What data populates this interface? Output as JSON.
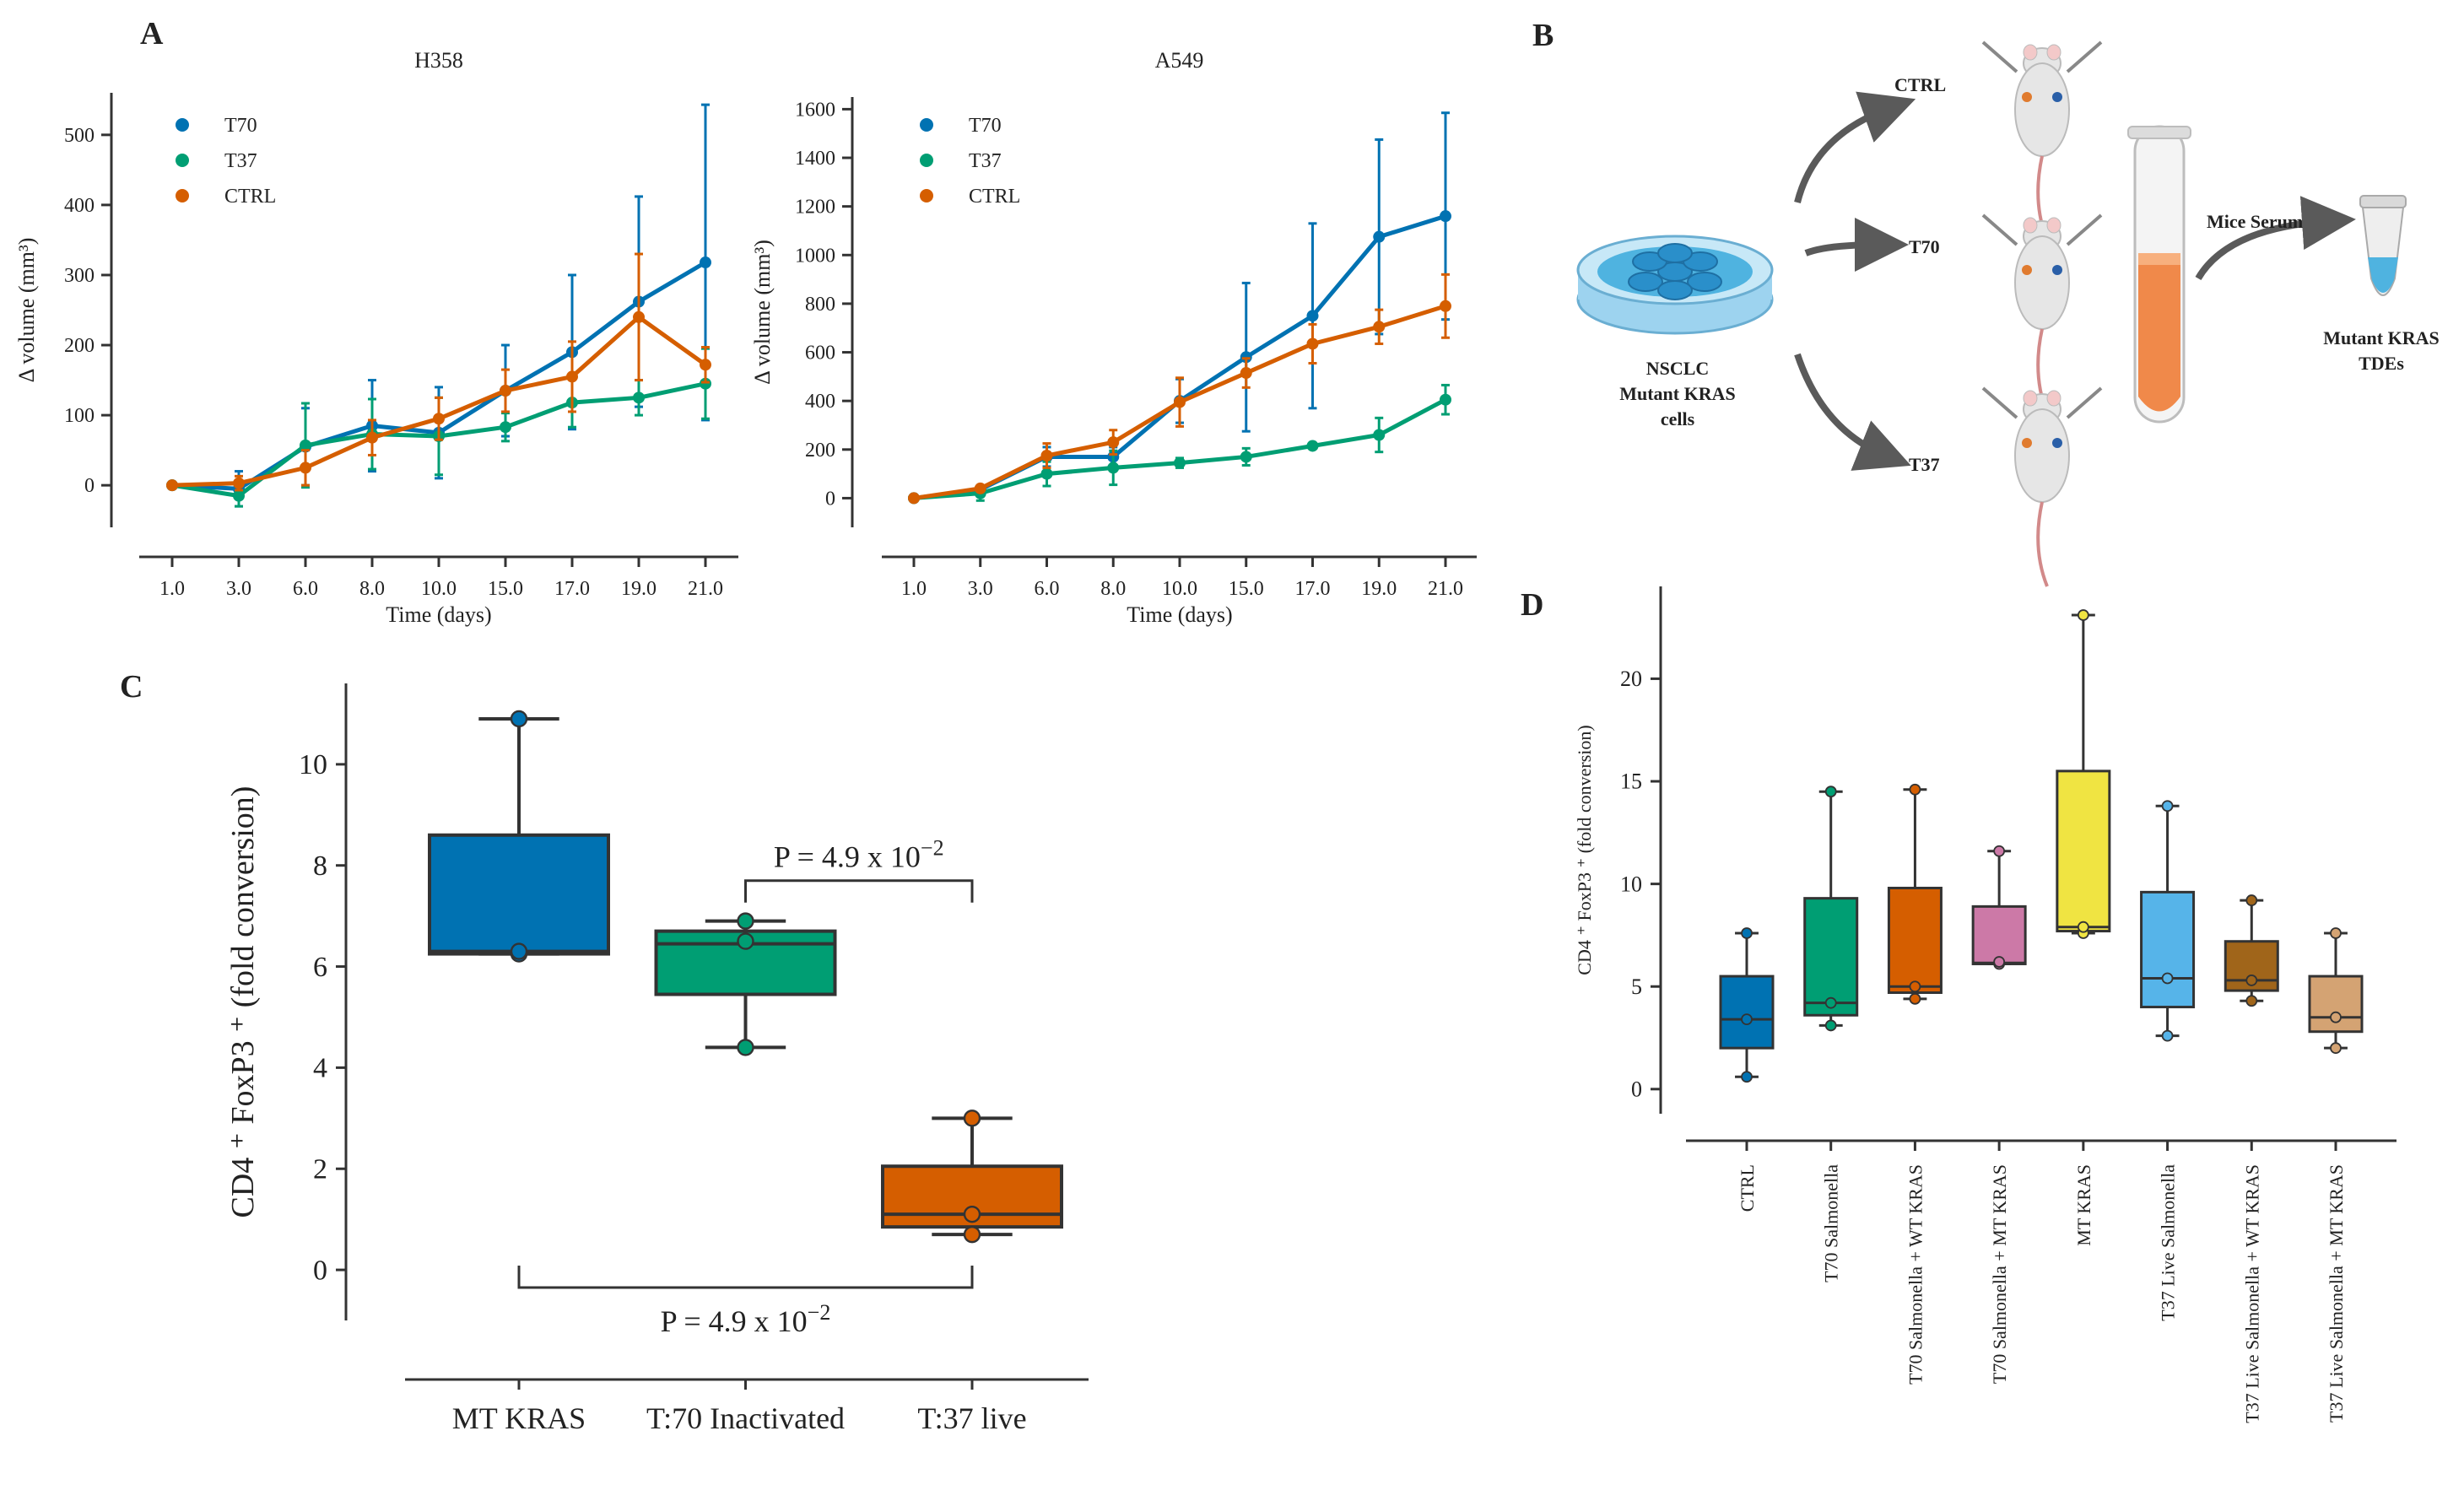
{
  "figure": {
    "panel_A_label": "A",
    "panel_B_label": "B",
    "panel_C_label": "C",
    "panel_D_label": "D"
  },
  "colors": {
    "T70": "#0072B2",
    "T37": "#009E73",
    "CTRL": "#D55E00",
    "D_boxes": [
      "#0072B2",
      "#009E73",
      "#D55E00",
      "#CC79A7",
      "#F0E442",
      "#56B4E9",
      "#A0651A",
      "#D4A373"
    ]
  },
  "chart_data": [
    {
      "id": "A-H358",
      "type": "line",
      "title": "H358",
      "xlabel": "Time (days)",
      "ylabel": "Δ volume (mm³)",
      "x": [
        "1.0",
        "3.0",
        "6.0",
        "8.0",
        "10.0",
        "15.0",
        "17.0",
        "19.0",
        "21.0"
      ],
      "ylim": [
        -60,
        560
      ],
      "yticks": [
        0,
        100,
        200,
        300,
        400,
        500
      ],
      "legend": "top-left",
      "series": [
        {
          "name": "T70",
          "color": "#0072B2",
          "values": [
            0,
            -5,
            55,
            85,
            75,
            135,
            190,
            262,
            318
          ],
          "err": [
            0,
            25,
            55,
            65,
            65,
            65,
            110,
            150,
            225
          ]
        },
        {
          "name": "T37",
          "color": "#009E73",
          "values": [
            0,
            -15,
            57,
            73,
            70,
            83,
            118,
            125,
            145
          ],
          "err": [
            0,
            15,
            60,
            50,
            55,
            20,
            35,
            25,
            50
          ]
        },
        {
          "name": "CTRL",
          "color": "#D55E00",
          "values": [
            0,
            3,
            25,
            68,
            95,
            135,
            155,
            240,
            172
          ],
          "err": [
            0,
            10,
            25,
            25,
            30,
            30,
            50,
            90,
            25
          ]
        }
      ]
    },
    {
      "id": "A-A549",
      "type": "line",
      "title": "A549",
      "xlabel": "Time (days)",
      "ylabel": "Δ volume (mm³)",
      "x": [
        "1.0",
        "3.0",
        "6.0",
        "8.0",
        "10.0",
        "15.0",
        "17.0",
        "19.0",
        "21.0"
      ],
      "ylim": [
        -120,
        1650
      ],
      "yticks": [
        0,
        200,
        400,
        600,
        800,
        1000,
        1200,
        1400,
        1600
      ],
      "legend": "top-left",
      "series": [
        {
          "name": "T70",
          "color": "#0072B2",
          "values": [
            0,
            35,
            170,
            170,
            400,
            580,
            750,
            1075,
            1160
          ],
          "err": [
            0,
            15,
            40,
            40,
            90,
            305,
            380,
            400,
            425
          ]
        },
        {
          "name": "T37",
          "color": "#009E73",
          "values": [
            0,
            20,
            100,
            125,
            145,
            170,
            215,
            260,
            405
          ],
          "err": [
            0,
            30,
            50,
            70,
            20,
            35,
            10,
            70,
            60
          ]
        },
        {
          "name": "CTRL",
          "color": "#D55E00",
          "values": [
            0,
            40,
            175,
            230,
            395,
            515,
            635,
            705,
            790
          ],
          "err": [
            0,
            10,
            50,
            50,
            100,
            60,
            80,
            70,
            130
          ]
        }
      ]
    },
    {
      "id": "C",
      "type": "box",
      "ylabel": "CD4 ⁺ FoxP3 ⁺ (fold conversion)",
      "ylim": [
        -1,
        11.6
      ],
      "yticks": [
        0,
        2,
        4,
        6,
        8,
        10
      ],
      "categories": [
        "MT KRAS",
        "T:70 Inactivated",
        "T:37 live"
      ],
      "boxes": [
        {
          "whislo": 6.25,
          "q1": 6.25,
          "med": 6.3,
          "q3": 8.6,
          "whishi": 10.9,
          "points": [
            6.25,
            6.3,
            10.9
          ],
          "color": "#0072B2"
        },
        {
          "whislo": 4.4,
          "q1": 5.45,
          "med": 6.45,
          "q3": 6.7,
          "whishi": 6.9,
          "points": [
            4.4,
            6.5,
            6.9
          ],
          "color": "#009E73"
        },
        {
          "whislo": 0.7,
          "q1": 0.85,
          "med": 1.1,
          "q3": 2.05,
          "whishi": 3.0,
          "points": [
            0.7,
            1.1,
            3.0
          ],
          "color": "#D55E00"
        }
      ],
      "annotations": [
        {
          "from": 1,
          "to": 2,
          "text": "P = 4.9 x 10",
          "exp": "−2",
          "position": "above"
        },
        {
          "from": 0,
          "to": 2,
          "text": "P = 4.9 x 10",
          "exp": "−2",
          "position": "below"
        }
      ]
    },
    {
      "id": "D",
      "type": "box",
      "ylabel": "CD4 ⁺ FoxP3 ⁺ (fold conversion)",
      "ylim": [
        -1.2,
        24.5
      ],
      "yticks": [
        0,
        5,
        10,
        15,
        20
      ],
      "categories": [
        "CTRL",
        "T70 Salmonella",
        "T70 Salmonella + WT KRAS",
        "T70 Salmonella + MT KRAS",
        "MT KRAS",
        "T37 Live Salmonella",
        "T37 Live Salmonella + WT KRAS",
        "T37 Live Salmonella + MT KRAS"
      ],
      "boxes": [
        {
          "whislo": 0.6,
          "q1": 2.0,
          "med": 3.4,
          "q3": 5.5,
          "whishi": 7.6,
          "points": [
            0.6,
            3.4,
            7.6
          ]
        },
        {
          "whislo": 3.1,
          "q1": 3.6,
          "med": 4.2,
          "q3": 9.3,
          "whishi": 14.5,
          "points": [
            3.1,
            4.2,
            14.5
          ]
        },
        {
          "whislo": 4.4,
          "q1": 4.7,
          "med": 5.0,
          "q3": 9.8,
          "whishi": 14.6,
          "points": [
            4.4,
            5.0,
            14.6
          ]
        },
        {
          "whislo": 6.1,
          "q1": 6.1,
          "med": 6.15,
          "q3": 8.9,
          "whishi": 11.6,
          "points": [
            6.1,
            6.2,
            11.6
          ]
        },
        {
          "whislo": 7.6,
          "q1": 7.7,
          "med": 7.9,
          "q3": 15.5,
          "whishi": 23.1,
          "points": [
            7.6,
            7.9,
            23.1
          ]
        },
        {
          "whislo": 2.6,
          "q1": 4.0,
          "med": 5.4,
          "q3": 9.6,
          "whishi": 13.8,
          "points": [
            2.6,
            5.4,
            13.8
          ]
        },
        {
          "whislo": 4.3,
          "q1": 4.8,
          "med": 5.3,
          "q3": 7.2,
          "whishi": 9.2,
          "points": [
            4.3,
            5.3,
            9.2
          ]
        },
        {
          "whislo": 2.0,
          "q1": 2.8,
          "med": 3.5,
          "q3": 5.5,
          "whishi": 7.6,
          "points": [
            2.0,
            3.5,
            7.6
          ]
        }
      ]
    }
  ],
  "diagram_B": {
    "dish_label_lines": [
      "NSCLC",
      "Mutant KRAS",
      "cells"
    ],
    "groups": [
      "CTRL",
      "T70",
      "T37"
    ],
    "serum_label": "Mice Serum",
    "product_lines": [
      "Mutant KRAS",
      "TDEs"
    ]
  }
}
